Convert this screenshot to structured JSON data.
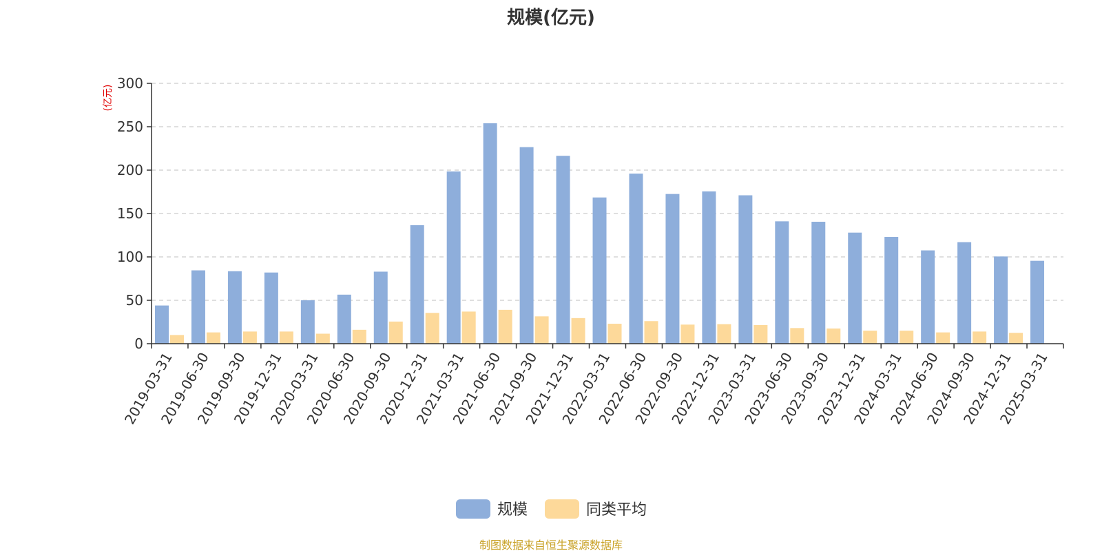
{
  "chart_data": {
    "type": "bar",
    "title": "规模(亿元)",
    "ylabel": "(亿元)",
    "ylim": [
      0,
      300
    ],
    "yticks": [
      0,
      50,
      100,
      150,
      200,
      250,
      300
    ],
    "grid": true,
    "legend_position": "bottom",
    "categories": [
      "2019-03-31",
      "2019-06-30",
      "2019-09-30",
      "2019-12-31",
      "2020-03-31",
      "2020-06-30",
      "2020-09-30",
      "2020-12-31",
      "2021-03-31",
      "2021-06-30",
      "2021-09-30",
      "2021-12-31",
      "2022-03-31",
      "2022-06-30",
      "2022-09-30",
      "2022-12-31",
      "2023-03-31",
      "2023-06-30",
      "2023-09-30",
      "2023-12-31",
      "2024-03-31",
      "2024-06-30",
      "2024-09-30",
      "2024-12-31",
      "2025-03-31"
    ],
    "series": [
      {
        "name": "规模",
        "color": "#8eaedb",
        "values": [
          44,
          84.5,
          83.5,
          82,
          50,
          56.5,
          83,
          136.5,
          198.5,
          254,
          226.5,
          216.5,
          168.5,
          196,
          172.5,
          175.5,
          171,
          141,
          140.5,
          128,
          123,
          107.5,
          117,
          100.5,
          95.5
        ]
      },
      {
        "name": "同类平均",
        "color": "#fdd99a",
        "values": [
          10,
          13,
          14,
          14,
          11.5,
          16,
          25.5,
          35.5,
          37,
          39,
          31.5,
          29.5,
          23,
          26,
          22,
          22.5,
          21.5,
          18,
          17.5,
          15,
          15,
          13,
          14,
          12.5,
          null
        ]
      }
    ],
    "source": "制图数据来自恒生聚源数据库"
  }
}
